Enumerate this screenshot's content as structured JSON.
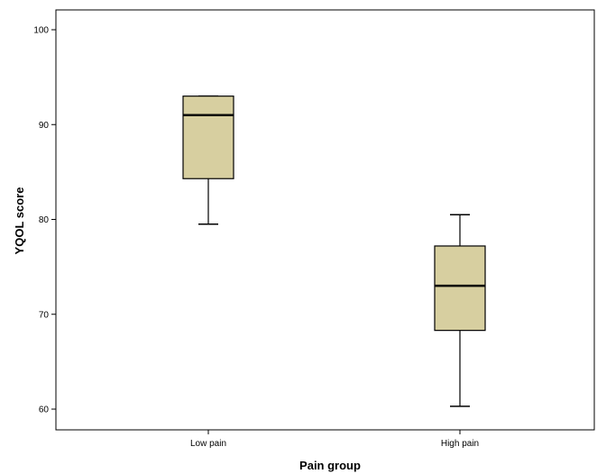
{
  "chart_data": {
    "type": "boxplot",
    "xlabel": "Pain group",
    "ylabel": "YQOL score",
    "ylim": [
      58,
      102
    ],
    "yticks": [
      60,
      70,
      80,
      90,
      100
    ],
    "grid": false,
    "colors": {
      "box_fill": "#d7cfa0",
      "box_stroke": "#000000",
      "background": "#ffffff"
    },
    "categories": [
      "Low pain",
      "High pain"
    ],
    "boxes": [
      {
        "category": "Low pain",
        "whisker_low": 79.5,
        "q1": 84.3,
        "median": 91.0,
        "q3": 93.0,
        "whisker_high": 93.0
      },
      {
        "category": "High pain",
        "whisker_low": 60.3,
        "q1": 68.3,
        "median": 73.0,
        "q3": 77.2,
        "whisker_high": 80.5
      }
    ]
  }
}
